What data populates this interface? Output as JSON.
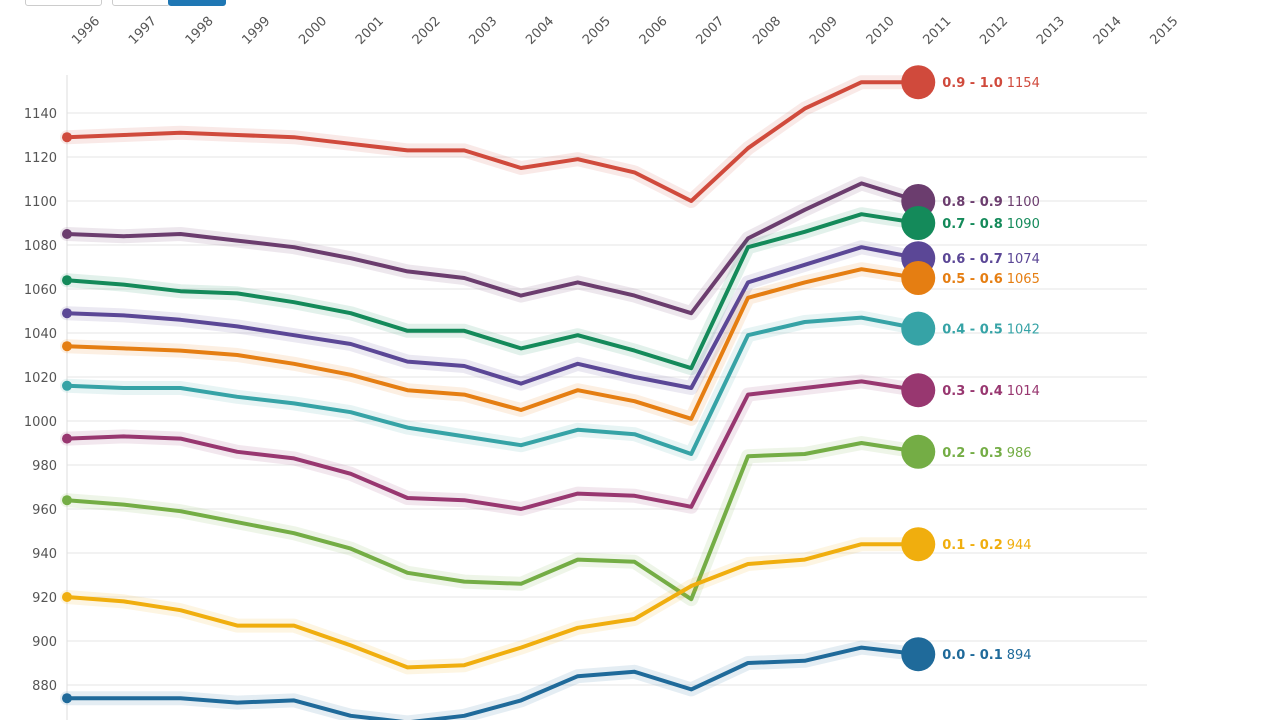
{
  "controls": {
    "accent": "#1f77b4"
  },
  "chart_data": {
    "type": "line",
    "x": [
      1996,
      1997,
      1998,
      1999,
      2000,
      2001,
      2002,
      2003,
      2004,
      2005,
      2006,
      2007,
      2008,
      2009,
      2010,
      2011
    ],
    "x_ticks": [
      "1996",
      "1997",
      "1998",
      "1999",
      "2000",
      "2001",
      "2002",
      "2003",
      "2004",
      "2005",
      "2006",
      "2007",
      "2008",
      "2009",
      "2010",
      "2011",
      "2012",
      "2013",
      "2014",
      "2015"
    ],
    "y_ticks": [
      "880",
      "900",
      "920",
      "940",
      "960",
      "980",
      "1000",
      "1020",
      "1040",
      "1060",
      "1080",
      "1100",
      "1120",
      "1140"
    ],
    "xlim": [
      1996,
      2015
    ],
    "ylim": [
      866,
      1160
    ],
    "grid": true,
    "legend": "end-labels",
    "series": [
      {
        "name": "0.9 - 1.0",
        "end_value": "1154",
        "color": "#d04a3c",
        "values": [
          1129,
          1130,
          1131,
          1130,
          1129,
          1126,
          1123,
          1123,
          1115,
          1119,
          1113,
          1100,
          1124,
          1142,
          1154,
          1154
        ]
      },
      {
        "name": "0.8 - 0.9",
        "end_value": "1100",
        "color": "#6b3d6e",
        "values": [
          1085,
          1084,
          1085,
          1082,
          1079,
          1074,
          1068,
          1065,
          1057,
          1063,
          1057,
          1049,
          1083,
          1096,
          1108,
          1100
        ]
      },
      {
        "name": "0.7 - 0.8",
        "end_value": "1090",
        "color": "#148a5a",
        "values": [
          1064,
          1062,
          1059,
          1058,
          1054,
          1049,
          1041,
          1041,
          1033,
          1039,
          1032,
          1024,
          1079,
          1086,
          1094,
          1090
        ]
      },
      {
        "name": "0.6 - 0.7",
        "end_value": "1074",
        "color": "#5b4796",
        "values": [
          1049,
          1048,
          1046,
          1043,
          1039,
          1035,
          1027,
          1025,
          1017,
          1026,
          1020,
          1015,
          1063,
          1071,
          1079,
          1074
        ]
      },
      {
        "name": "0.5 - 0.6",
        "end_value": "1065",
        "color": "#e57e12",
        "values": [
          1034,
          1033,
          1032,
          1030,
          1026,
          1021,
          1014,
          1012,
          1005,
          1014,
          1009,
          1001,
          1056,
          1063,
          1069,
          1065
        ]
      },
      {
        "name": "0.4 - 0.5",
        "end_value": "1042",
        "color": "#36a3a6",
        "values": [
          1016,
          1015,
          1015,
          1011,
          1008,
          1004,
          997,
          993,
          989,
          996,
          994,
          985,
          1039,
          1045,
          1047,
          1042
        ]
      },
      {
        "name": "0.3 - 0.4",
        "end_value": "1014",
        "color": "#983770",
        "values": [
          992,
          993,
          992,
          986,
          983,
          976,
          965,
          964,
          960,
          967,
          966,
          961,
          1012,
          1015,
          1018,
          1014
        ]
      },
      {
        "name": "0.2 - 0.3",
        "end_value": "986",
        "color": "#74ad45",
        "values": [
          964,
          962,
          959,
          954,
          949,
          942,
          931,
          927,
          926,
          937,
          936,
          919,
          984,
          985,
          990,
          986
        ]
      },
      {
        "name": "0.1 - 0.2",
        "end_value": "944",
        "color": "#f0ae0e",
        "values": [
          920,
          918,
          914,
          907,
          907,
          898,
          888,
          889,
          897,
          906,
          910,
          925,
          935,
          937,
          944,
          944
        ]
      },
      {
        "name": "0.0 - 0.1",
        "end_value": "894",
        "color": "#1f6a9a",
        "values": [
          874,
          874,
          874,
          872,
          873,
          866,
          863,
          866,
          873,
          884,
          886,
          878,
          890,
          891,
          897,
          894
        ]
      }
    ]
  }
}
